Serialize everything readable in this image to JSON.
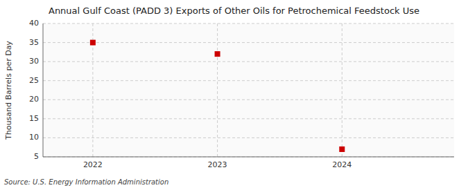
{
  "chart_data": {
    "type": "scatter",
    "title": "Annual Gulf Coast (PADD 3) Exports of Other Oils for Petrochemical Feedstock Use",
    "ylabel": "Thousand Barrels per Day",
    "source": "Source: U.S. Energy Information Administration",
    "x": [
      2022,
      2023,
      2024
    ],
    "values": [
      35.0,
      32.0,
      7.0
    ],
    "color": "#cc0000",
    "marker": "square",
    "xlim": [
      2021.6,
      2024.9
    ],
    "xticks": [
      2022,
      2023,
      2024
    ],
    "ylim": [
      5,
      40
    ],
    "yticks": [
      5,
      10,
      15,
      20,
      25,
      30,
      35,
      40
    ],
    "grid": true
  }
}
